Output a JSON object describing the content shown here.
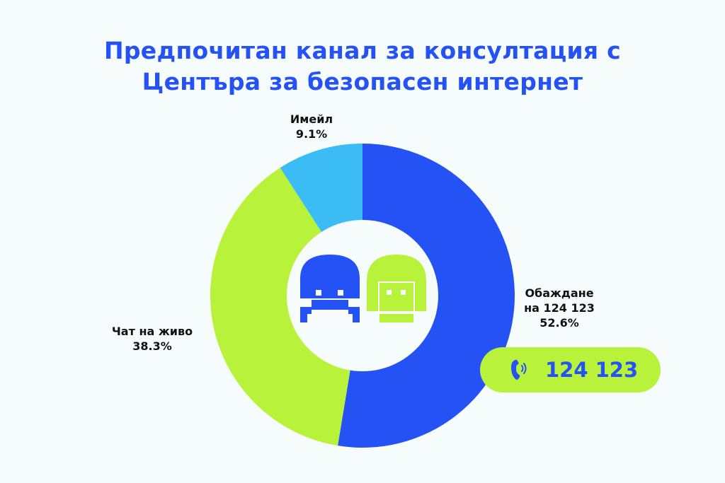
{
  "title": {
    "line1": "Предпочитан канал за консултация с",
    "line2": "Центъра за безопасен интернет"
  },
  "chart_data": {
    "type": "pie",
    "style": "donut",
    "slices": [
      {
        "label_line1": "Обаждане",
        "label_line2": "на 124 123",
        "value": 52.6,
        "value_text": "52.6%",
        "color": "#2452f5"
      },
      {
        "label_line1": "Чат на живо",
        "label_line2": "",
        "value": 38.3,
        "value_text": "38.3%",
        "color": "#b9f23a"
      },
      {
        "label_line1": "Имейл",
        "label_line2": "",
        "value": 9.1,
        "value_text": "9.1%",
        "color": "#3bbcf5"
      }
    ]
  },
  "phone_badge": {
    "icon": "phone-icon",
    "number": "124 123",
    "background": "#b9f23a",
    "text_color": "#2452f5"
  },
  "center_icons": [
    "boy-face-icon",
    "girl-face-icon"
  ]
}
